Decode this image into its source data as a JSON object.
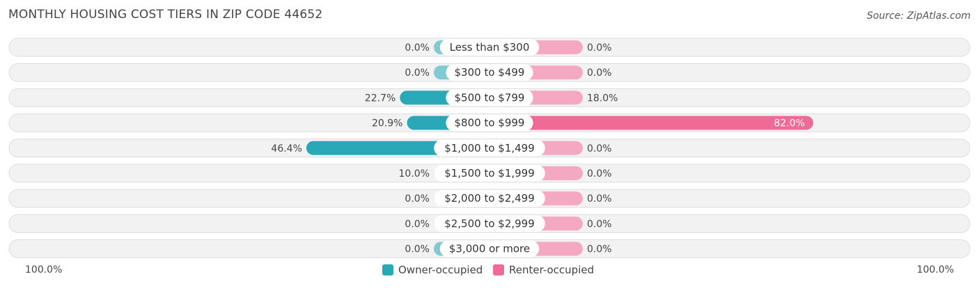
{
  "header": {
    "title": "MONTHLY HOUSING COST TIERS IN ZIP CODE 44652",
    "source": "Source: ZipAtlas.com"
  },
  "colors": {
    "owner": "#2ba8b8",
    "owner_light": "#7fcad3",
    "renter": "#f06a96",
    "renter_light": "#f5a8c2",
    "row_bg": "#f0f0f0",
    "row_border": "#dddddd"
  },
  "axis": {
    "left_label": "100.0%",
    "right_label": "100.0%"
  },
  "chart_data": {
    "type": "bar",
    "title": "MONTHLY HOUSING COST TIERS IN ZIP CODE 44652",
    "orientation": "diverging-horizontal",
    "categories": [
      "Less than $300",
      "$300 to $499",
      "$500 to $799",
      "$800 to $999",
      "$1,000 to $1,499",
      "$1,500 to $1,999",
      "$2,000 to $2,499",
      "$2,500 to $2,999",
      "$3,000 or more"
    ],
    "series": [
      {
        "name": "Owner-occupied",
        "values": [
          0.0,
          0.0,
          22.7,
          20.9,
          46.4,
          10.0,
          0.0,
          0.0,
          0.0
        ],
        "labels": [
          "0.0%",
          "0.0%",
          "22.7%",
          "20.9%",
          "46.4%",
          "10.0%",
          "0.0%",
          "0.0%",
          "0.0%"
        ]
      },
      {
        "name": "Renter-occupied",
        "values": [
          0.0,
          0.0,
          18.0,
          82.0,
          0.0,
          0.0,
          0.0,
          0.0,
          0.0
        ],
        "labels": [
          "0.0%",
          "0.0%",
          "18.0%",
          "82.0%",
          "0.0%",
          "0.0%",
          "0.0%",
          "0.0%",
          "0.0%"
        ]
      }
    ],
    "xlim": [
      -100,
      100
    ],
    "legend_position": "bottom-center",
    "grid": false
  }
}
